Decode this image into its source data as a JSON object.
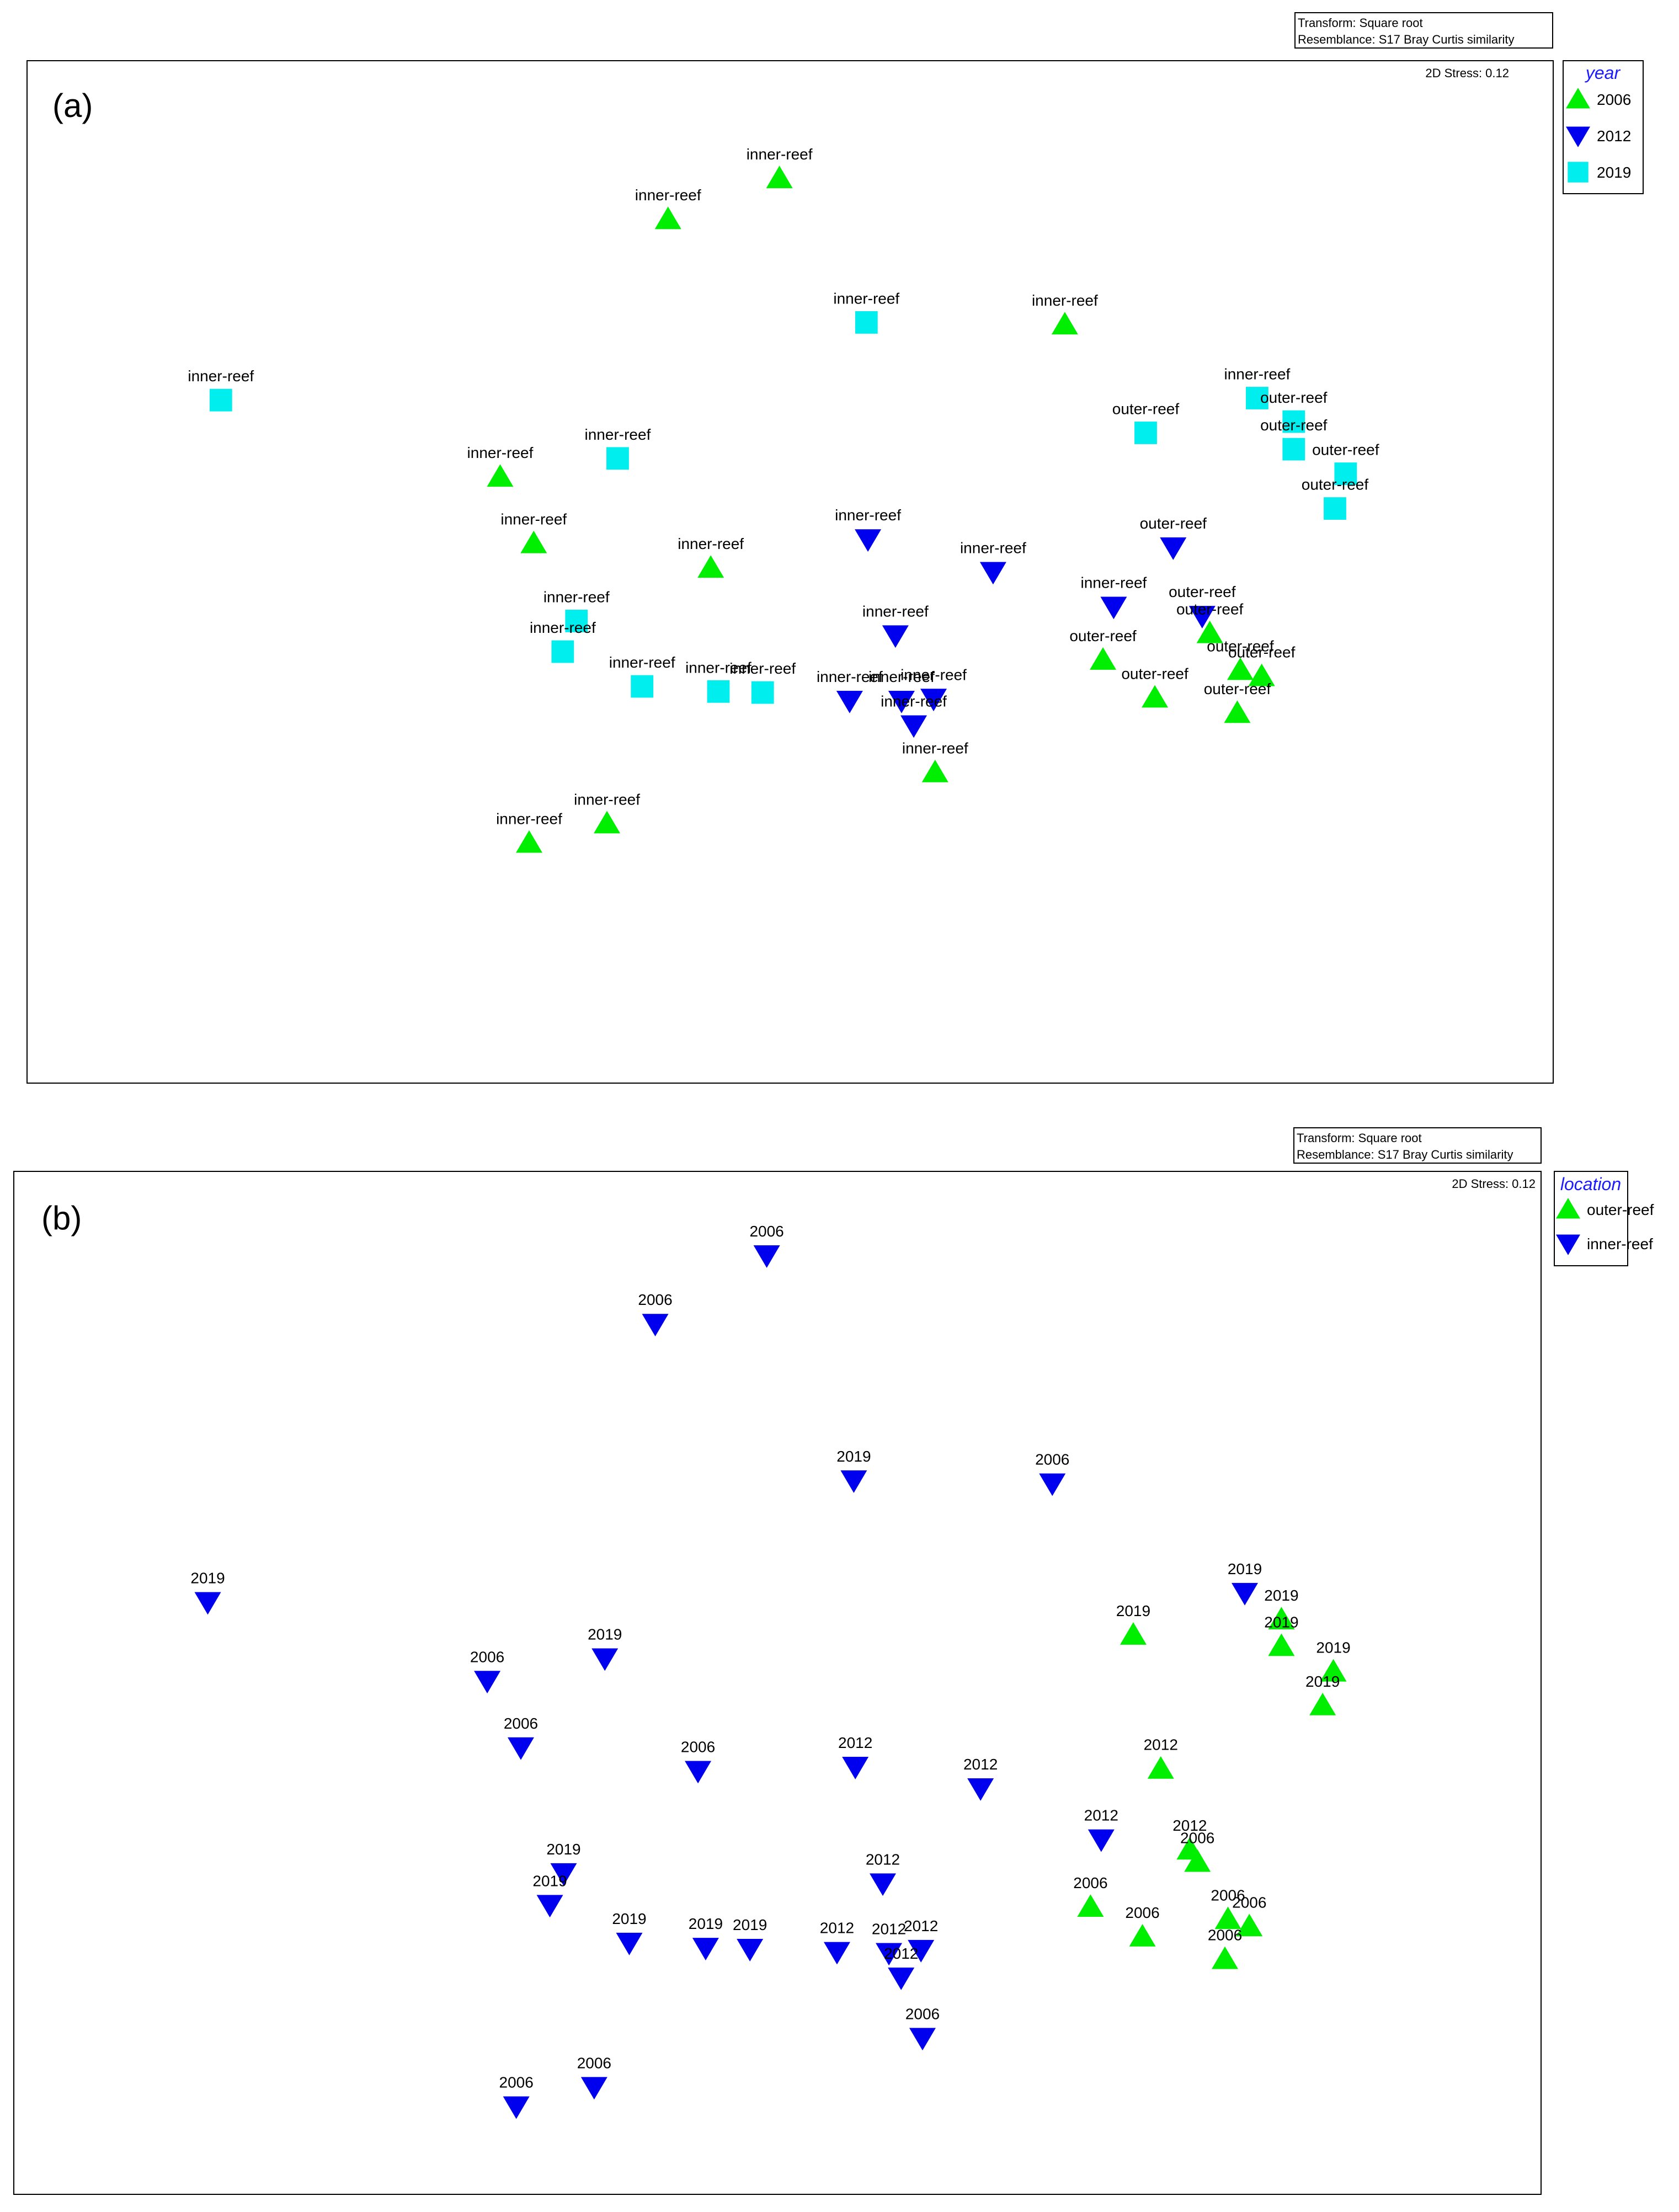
{
  "colors": {
    "green": "#00ee00",
    "blue": "#0000ee",
    "cyan": "#00eeee",
    "frame": "#000000",
    "legend_title": "#1a1aff"
  },
  "chart_data": [
    {
      "type": "scatter",
      "panel_label": "(a)",
      "info_lines": [
        "Transform: Square root",
        "Resemblance: S17 Bray Curtis similarity"
      ],
      "stress": "2D Stress: 0.12",
      "legend": {
        "title": "year",
        "placement": "right",
        "entries": [
          {
            "label": "2006",
            "symbol": "triangle-up",
            "color": "#00ee00"
          },
          {
            "label": "2012",
            "symbol": "triangle-down",
            "color": "#0000ee"
          },
          {
            "label": "2019",
            "symbol": "square",
            "color": "#00eeee"
          }
        ]
      },
      "points": [
        {
          "x": 0.493,
          "y": 0.115,
          "symbol": "triangle-up",
          "label": "inner-reef"
        },
        {
          "x": 0.42,
          "y": 0.155,
          "symbol": "triangle-up",
          "label": "inner-reef"
        },
        {
          "x": 0.55,
          "y": 0.256,
          "symbol": "square",
          "label": "inner-reef"
        },
        {
          "x": 0.68,
          "y": 0.258,
          "symbol": "triangle-up",
          "label": "inner-reef"
        },
        {
          "x": 0.127,
          "y": 0.332,
          "symbol": "square",
          "label": "inner-reef"
        },
        {
          "x": 0.806,
          "y": 0.33,
          "symbol": "square",
          "label": "inner-reef"
        },
        {
          "x": 0.83,
          "y": 0.353,
          "symbol": "square",
          "label": "outer-reef"
        },
        {
          "x": 0.733,
          "y": 0.364,
          "symbol": "square",
          "label": "outer-reef"
        },
        {
          "x": 0.83,
          "y": 0.38,
          "symbol": "square",
          "label": "outer-reef"
        },
        {
          "x": 0.864,
          "y": 0.404,
          "symbol": "square",
          "label": "outer-reef"
        },
        {
          "x": 0.857,
          "y": 0.438,
          "symbol": "square",
          "label": "outer-reef"
        },
        {
          "x": 0.31,
          "y": 0.407,
          "symbol": "triangle-up",
          "label": "inner-reef"
        },
        {
          "x": 0.387,
          "y": 0.389,
          "symbol": "square",
          "label": "inner-reef"
        },
        {
          "x": 0.332,
          "y": 0.472,
          "symbol": "triangle-up",
          "label": "inner-reef"
        },
        {
          "x": 0.448,
          "y": 0.496,
          "symbol": "triangle-up",
          "label": "inner-reef"
        },
        {
          "x": 0.551,
          "y": 0.468,
          "symbol": "triangle-down",
          "label": "inner-reef"
        },
        {
          "x": 0.633,
          "y": 0.5,
          "symbol": "triangle-down",
          "label": "inner-reef"
        },
        {
          "x": 0.751,
          "y": 0.476,
          "symbol": "triangle-down",
          "label": "outer-reef"
        },
        {
          "x": 0.712,
          "y": 0.534,
          "symbol": "triangle-down",
          "label": "inner-reef"
        },
        {
          "x": 0.77,
          "y": 0.543,
          "symbol": "triangle-down",
          "label": "outer-reef"
        },
        {
          "x": 0.775,
          "y": 0.56,
          "symbol": "triangle-up",
          "label": "outer-reef"
        },
        {
          "x": 0.36,
          "y": 0.548,
          "symbol": "square",
          "label": "inner-reef"
        },
        {
          "x": 0.351,
          "y": 0.578,
          "symbol": "square",
          "label": "inner-reef"
        },
        {
          "x": 0.569,
          "y": 0.562,
          "symbol": "triangle-down",
          "label": "inner-reef"
        },
        {
          "x": 0.705,
          "y": 0.586,
          "symbol": "triangle-up",
          "label": "outer-reef"
        },
        {
          "x": 0.795,
          "y": 0.596,
          "symbol": "triangle-up",
          "label": "outer-reef"
        },
        {
          "x": 0.809,
          "y": 0.602,
          "symbol": "triangle-up",
          "label": "outer-reef"
        },
        {
          "x": 0.403,
          "y": 0.612,
          "symbol": "square",
          "label": "inner-reef"
        },
        {
          "x": 0.453,
          "y": 0.617,
          "symbol": "square",
          "label": "inner-reef"
        },
        {
          "x": 0.482,
          "y": 0.618,
          "symbol": "square",
          "label": "inner-reef"
        },
        {
          "x": 0.539,
          "y": 0.626,
          "symbol": "triangle-down",
          "label": "inner-reef"
        },
        {
          "x": 0.573,
          "y": 0.626,
          "symbol": "triangle-down",
          "label": "inner-reef"
        },
        {
          "x": 0.594,
          "y": 0.624,
          "symbol": "triangle-down",
          "label": "inner-reef"
        },
        {
          "x": 0.581,
          "y": 0.65,
          "symbol": "triangle-down",
          "label": "inner-reef"
        },
        {
          "x": 0.739,
          "y": 0.623,
          "symbol": "triangle-up",
          "label": "outer-reef"
        },
        {
          "x": 0.793,
          "y": 0.638,
          "symbol": "triangle-up",
          "label": "outer-reef"
        },
        {
          "x": 0.595,
          "y": 0.696,
          "symbol": "triangle-up",
          "label": "inner-reef"
        },
        {
          "x": 0.38,
          "y": 0.746,
          "symbol": "triangle-up",
          "label": "inner-reef"
        },
        {
          "x": 0.329,
          "y": 0.765,
          "symbol": "triangle-up",
          "label": "inner-reef"
        }
      ]
    },
    {
      "type": "scatter",
      "panel_label": "(b)",
      "info_lines": [
        "Transform: Square root",
        "Resemblance: S17 Bray Curtis similarity"
      ],
      "stress": "2D Stress: 0.12",
      "legend": {
        "title": "location",
        "placement": "right",
        "entries": [
          {
            "label": "outer-reef",
            "symbol": "triangle-up",
            "color": "#00ee00"
          },
          {
            "label": "inner-reef",
            "symbol": "triangle-down",
            "color": "#0000ee"
          }
        ]
      },
      "points": [
        {
          "x": 0.493,
          "y": 0.082,
          "symbol": "triangle-down",
          "label": "2006"
        },
        {
          "x": 0.42,
          "y": 0.149,
          "symbol": "triangle-down",
          "label": "2006"
        },
        {
          "x": 0.55,
          "y": 0.302,
          "symbol": "triangle-down",
          "label": "2019"
        },
        {
          "x": 0.68,
          "y": 0.305,
          "symbol": "triangle-down",
          "label": "2006"
        },
        {
          "x": 0.127,
          "y": 0.421,
          "symbol": "triangle-down",
          "label": "2019"
        },
        {
          "x": 0.806,
          "y": 0.412,
          "symbol": "triangle-down",
          "label": "2019"
        },
        {
          "x": 0.83,
          "y": 0.438,
          "symbol": "triangle-up",
          "label": "2019"
        },
        {
          "x": 0.733,
          "y": 0.453,
          "symbol": "triangle-up",
          "label": "2019"
        },
        {
          "x": 0.83,
          "y": 0.464,
          "symbol": "triangle-up",
          "label": "2019"
        },
        {
          "x": 0.864,
          "y": 0.489,
          "symbol": "triangle-up",
          "label": "2019"
        },
        {
          "x": 0.857,
          "y": 0.522,
          "symbol": "triangle-up",
          "label": "2019"
        },
        {
          "x": 0.31,
          "y": 0.498,
          "symbol": "triangle-down",
          "label": "2006"
        },
        {
          "x": 0.387,
          "y": 0.476,
          "symbol": "triangle-down",
          "label": "2019"
        },
        {
          "x": 0.332,
          "y": 0.563,
          "symbol": "triangle-down",
          "label": "2006"
        },
        {
          "x": 0.448,
          "y": 0.586,
          "symbol": "triangle-down",
          "label": "2006"
        },
        {
          "x": 0.551,
          "y": 0.582,
          "symbol": "triangle-down",
          "label": "2012"
        },
        {
          "x": 0.633,
          "y": 0.603,
          "symbol": "triangle-down",
          "label": "2012"
        },
        {
          "x": 0.751,
          "y": 0.584,
          "symbol": "triangle-up",
          "label": "2012"
        },
        {
          "x": 0.712,
          "y": 0.653,
          "symbol": "triangle-down",
          "label": "2012"
        },
        {
          "x": 0.77,
          "y": 0.663,
          "symbol": "triangle-up",
          "label": "2012"
        },
        {
          "x": 0.775,
          "y": 0.675,
          "symbol": "triangle-up",
          "label": "2006"
        },
        {
          "x": 0.36,
          "y": 0.686,
          "symbol": "triangle-down",
          "label": "2019"
        },
        {
          "x": 0.351,
          "y": 0.717,
          "symbol": "triangle-down",
          "label": "2019"
        },
        {
          "x": 0.569,
          "y": 0.696,
          "symbol": "triangle-down",
          "label": "2012"
        },
        {
          "x": 0.705,
          "y": 0.719,
          "symbol": "triangle-up",
          "label": "2006"
        },
        {
          "x": 0.795,
          "y": 0.731,
          "symbol": "triangle-up",
          "label": "2006"
        },
        {
          "x": 0.809,
          "y": 0.738,
          "symbol": "triangle-up",
          "label": "2006"
        },
        {
          "x": 0.403,
          "y": 0.754,
          "symbol": "triangle-down",
          "label": "2019"
        },
        {
          "x": 0.453,
          "y": 0.759,
          "symbol": "triangle-down",
          "label": "2019"
        },
        {
          "x": 0.482,
          "y": 0.76,
          "symbol": "triangle-down",
          "label": "2019"
        },
        {
          "x": 0.539,
          "y": 0.763,
          "symbol": "triangle-down",
          "label": "2012"
        },
        {
          "x": 0.573,
          "y": 0.764,
          "symbol": "triangle-down",
          "label": "2012"
        },
        {
          "x": 0.594,
          "y": 0.761,
          "symbol": "triangle-down",
          "label": "2012"
        },
        {
          "x": 0.581,
          "y": 0.788,
          "symbol": "triangle-down",
          "label": "2012"
        },
        {
          "x": 0.739,
          "y": 0.748,
          "symbol": "triangle-up",
          "label": "2006"
        },
        {
          "x": 0.793,
          "y": 0.77,
          "symbol": "triangle-up",
          "label": "2006"
        },
        {
          "x": 0.595,
          "y": 0.847,
          "symbol": "triangle-down",
          "label": "2006"
        },
        {
          "x": 0.38,
          "y": 0.895,
          "symbol": "triangle-down",
          "label": "2006"
        },
        {
          "x": 0.329,
          "y": 0.914,
          "symbol": "triangle-down",
          "label": "2006"
        }
      ]
    }
  ]
}
